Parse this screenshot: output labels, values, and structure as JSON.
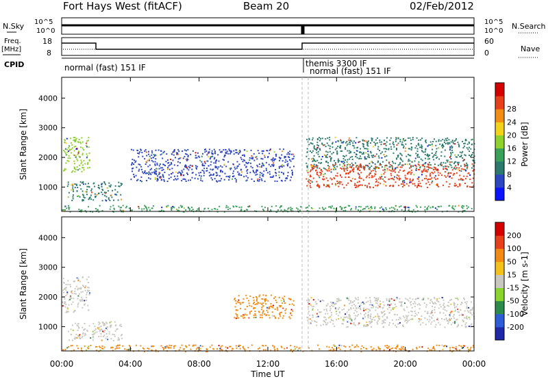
{
  "header": {
    "station": "Fort Hays West (fitACF)",
    "beam": "Beam 20",
    "date": "02/Feb/2012"
  },
  "status_panels": {
    "nsky_label": "N.Sky",
    "nsearch_label": "N.Search",
    "nsky_ticks": [
      "10^5",
      "10^0"
    ],
    "freq_label_line1": "Freq.",
    "freq_label_line2": "[MHz]",
    "freq_ticks": [
      "18",
      "8"
    ],
    "nave_label": "Nave",
    "nave_ticks": [
      "60",
      "0"
    ],
    "cpid_label": "CPID",
    "cpid_segments": [
      {
        "name": "normal (fast) 151 IF",
        "start_hour": 0.0,
        "end_hour": 14.0
      },
      {
        "name": "themis 3300 IF",
        "start_hour": 14.0,
        "end_hour": 14.1
      },
      {
        "name": "normal (fast) 151 IF",
        "start_hour": 14.1,
        "end_hour": 24.0
      }
    ]
  },
  "chart_data": [
    {
      "type": "heatmap",
      "name": "power",
      "ylabel": "Slant Range [km]",
      "yticks": [
        1000,
        2000,
        3000,
        4000
      ],
      "ylim": [
        180,
        4700
      ],
      "xlim": [
        0,
        24
      ],
      "colorbar_label": "Power [dB]",
      "colorbar_ticks": [
        "4",
        "8",
        "12",
        "16",
        "20",
        "24",
        "28"
      ],
      "colorbar_colors": [
        "#0a14ff",
        "#2d46c2",
        "#2c7a6e",
        "#3aa05a",
        "#8fcf2e",
        "#f2d21a",
        "#f28e14",
        "#e8401a",
        "#d40000"
      ],
      "regions": [
        {
          "start_hour": 0.0,
          "end_hour": 1.6,
          "range_low": 1500,
          "range_high": 2700,
          "level": 4
        },
        {
          "start_hour": 0.3,
          "end_hour": 3.5,
          "range_low": 550,
          "range_high": 1200,
          "level": 2
        },
        {
          "start_hour": 4.0,
          "end_hour": 13.5,
          "range_low": 1200,
          "range_high": 2300,
          "level": 1
        },
        {
          "start_hour": 14.2,
          "end_hour": 24.0,
          "range_low": 1600,
          "range_high": 2700,
          "level": 2
        },
        {
          "start_hour": 14.2,
          "end_hour": 24.0,
          "range_low": 1000,
          "range_high": 1800,
          "level": 7
        },
        {
          "start_hour": 0.0,
          "end_hour": 24.0,
          "range_low": 180,
          "range_high": 400,
          "level": 3
        }
      ]
    },
    {
      "type": "heatmap",
      "name": "velocity",
      "ylabel": "Slant Range [km]",
      "xlabel": "Time UT",
      "yticks": [
        1000,
        2000,
        3000,
        4000
      ],
      "ylim": [
        180,
        4700
      ],
      "xlim": [
        0,
        24
      ],
      "xticks": [
        "00:00",
        "04:00",
        "08:00",
        "12:00",
        "16:00",
        "20:00",
        "00:00"
      ],
      "colorbar_label": "Velocity [m s-1]",
      "colorbar_ticks": [
        "200",
        "100",
        "50",
        "15",
        "-15",
        "-50",
        "-100",
        "-200"
      ],
      "colorbar_colors": [
        "#1e2aa8",
        "#2e5ed6",
        "#2e8a4a",
        "#8ad42e",
        "#c8c8c0",
        "#f2c21a",
        "#f28a14",
        "#e8401a",
        "#d40000"
      ],
      "regions": [
        {
          "start_hour": 0.0,
          "end_hour": 1.6,
          "range_low": 1500,
          "range_high": 2700,
          "velocity": 0
        },
        {
          "start_hour": 0.3,
          "end_hour": 3.5,
          "range_low": 550,
          "range_high": 1200,
          "velocity": 0
        },
        {
          "start_hour": 10.0,
          "end_hour": 13.5,
          "range_low": 1300,
          "range_high": 2100,
          "velocity": -50
        },
        {
          "start_hour": 14.2,
          "end_hour": 24.0,
          "range_low": 1000,
          "range_high": 2000,
          "velocity": 0
        },
        {
          "start_hour": 0.0,
          "end_hour": 24.0,
          "range_low": 180,
          "range_high": 400,
          "velocity": -50
        }
      ]
    }
  ]
}
